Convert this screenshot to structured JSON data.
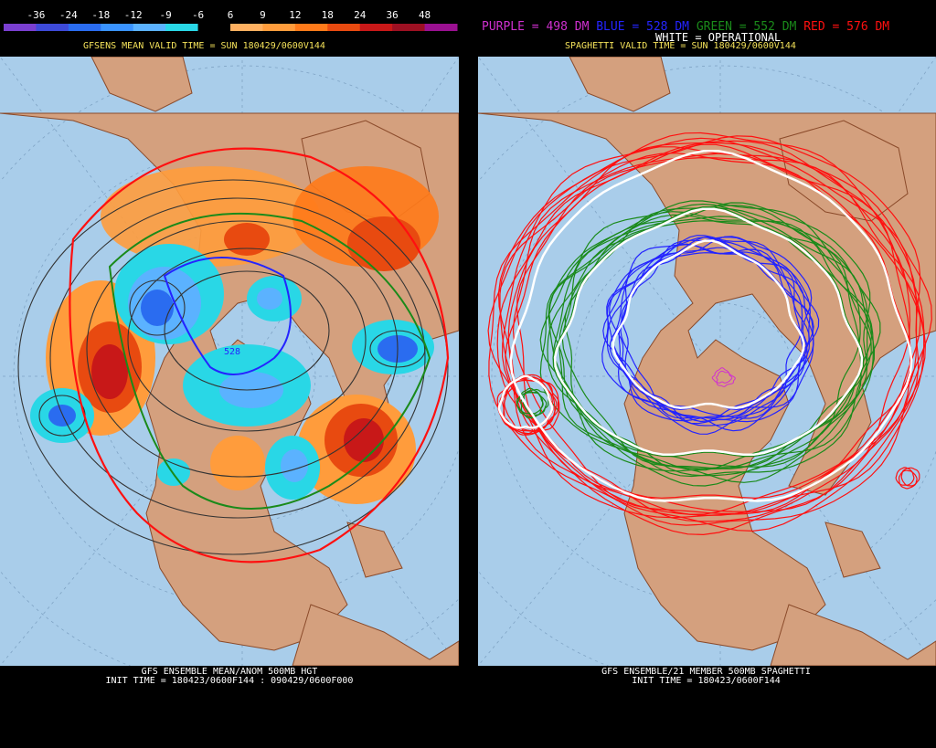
{
  "colorbar": {
    "labels": [
      "-36",
      "-24",
      "-18",
      "-12",
      "-9",
      "-6",
      "6",
      "9",
      "12",
      "18",
      "24",
      "36",
      "48"
    ],
    "colors": [
      "#7a3fd0",
      "#3d4ad8",
      "#2a6cf0",
      "#3a93ff",
      "#5bb2ff",
      "#29d7e6",
      "#000000",
      "#ffb060",
      "#ff9c3c",
      "#ff7a1a",
      "#e84a10",
      "#c81818",
      "#9c1022",
      "#9a1090"
    ]
  },
  "left": {
    "header": "GFSENS MEAN VALID TIME = SUN 180429/0600V144",
    "contour_label": "528",
    "footer_line1": "GFS ENSEMBLE MEAN/ANOM 500MB HGT",
    "footer_line2": "INIT TIME = 180423/0600F144 : 090429/0600F000"
  },
  "right": {
    "legend": {
      "purple": "PURPLE = 498 DM",
      "blue": "BLUE = 528 DM",
      "green": "GREEN = 552 DM",
      "red": "RED = 576 DM",
      "white": "WHITE = OPERATIONAL"
    },
    "header": "SPAGHETTI VALID TIME = SUN 180429/0600V144",
    "footer_line1": "GFS ENSEMBLE/21 MEMBER 500MB SPAGHETTI",
    "footer_line2": "INIT TIME = 180423/0600F144"
  },
  "colors": {
    "ocean": "#a9cdea",
    "land": "#d4a07e",
    "border": "#8a4a2a",
    "header_yellow": "#f4e25a",
    "purple": "#d030d0",
    "blue": "#2424ff",
    "green": "#1a8a1a",
    "red": "#ff1010",
    "white": "#ffffff"
  }
}
